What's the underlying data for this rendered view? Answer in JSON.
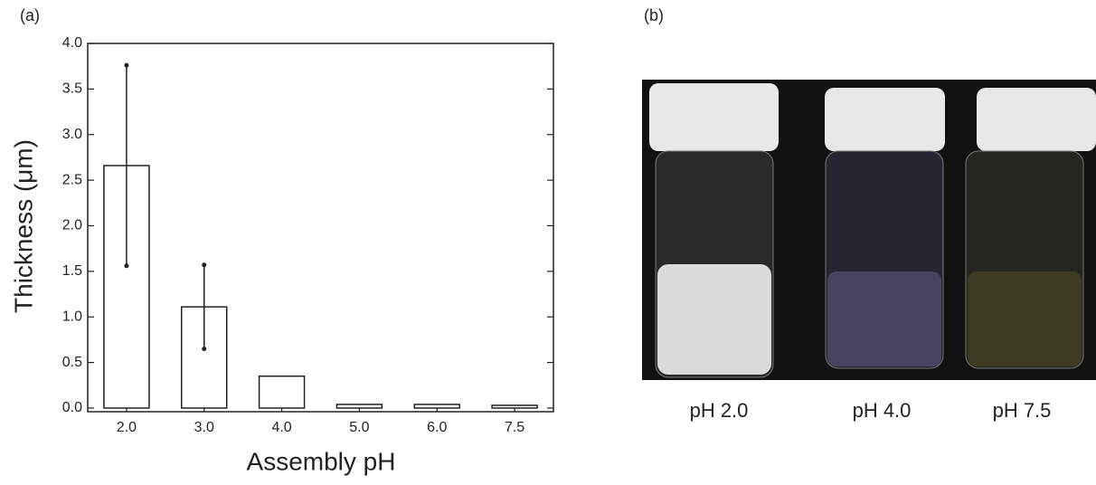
{
  "panels": [
    "(a)",
    "(b)"
  ],
  "chart_data": {
    "type": "bar",
    "xlabel": "Assembly pH",
    "ylabel": "Thickness (μm)",
    "categories": [
      "2.0",
      "3.0",
      "4.0",
      "5.0",
      "6.0",
      "7.5"
    ],
    "values": [
      2.66,
      1.11,
      0.35,
      0.04,
      0.04,
      0.03
    ],
    "errors": [
      1.1,
      0.46,
      null,
      null,
      null,
      null
    ],
    "color": "#ffffff",
    "ylim": [
      -0.04,
      4.0
    ],
    "yticks": [
      {
        "value": 0,
        "label": "0.0"
      },
      0.5,
      {
        "value": 1,
        "label": "1.0"
      },
      1.5,
      {
        "value": 2,
        "label": "2.0"
      },
      2.5,
      {
        "value": 3,
        "label": "3.0"
      },
      3.5,
      {
        "value": 4,
        "label": "4.0"
      }
    ]
  },
  "photo": {
    "labels": [
      "pH 2.0",
      "pH 4.0",
      "pH 7.5"
    ]
  }
}
